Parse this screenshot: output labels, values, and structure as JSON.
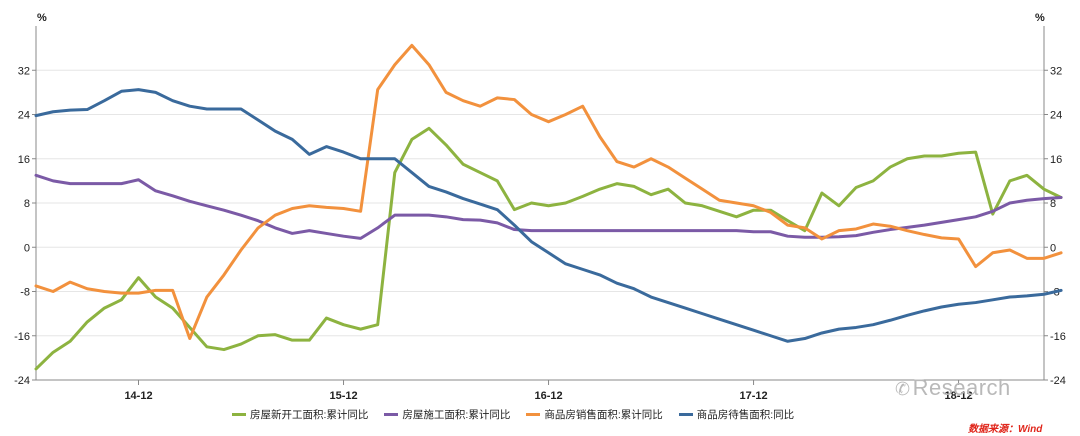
{
  "chart_data": {
    "type": "line",
    "y_unit": "%",
    "ylim": [
      -24,
      40
    ],
    "yticks": [
      -24,
      -16,
      -8,
      0,
      8,
      16,
      24,
      32
    ],
    "x_range": [
      0,
      59
    ],
    "x_tick_labels": [
      {
        "label": "14-12",
        "x": 6
      },
      {
        "label": "15-12",
        "x": 18
      },
      {
        "label": "16-12",
        "x": 30
      },
      {
        "label": "17-12",
        "x": 42
      },
      {
        "label": "18-12",
        "x": 54
      }
    ],
    "grid": true,
    "legend_position": "bottom",
    "series": [
      {
        "name": "房屋新开工面积:累计同比",
        "color": "#8db340",
        "values": [
          -22,
          -19,
          -17,
          -13.5,
          -11,
          -9.5,
          -5.5,
          -9,
          -11,
          -14.5,
          -18,
          -18.5,
          -17.5,
          -16,
          -15.8,
          -16.8,
          -16.8,
          -12.8,
          -14,
          -14.8,
          -14,
          13.5,
          19.5,
          21.5,
          18.5,
          15,
          13.5,
          12,
          6.8,
          8,
          7.5,
          8,
          9.2,
          10.5,
          11.5,
          11,
          9.5,
          10.5,
          8,
          7.5,
          6.5,
          5.5,
          6.7,
          6.7,
          4.8,
          3,
          9.8,
          7.5,
          10.8,
          12,
          14.5,
          16,
          16.5,
          16.5,
          17,
          17.2,
          6,
          12,
          13,
          10.5,
          9
        ]
      },
      {
        "name": "房屋施工面积:累计同比",
        "color": "#7b5aa6",
        "values": [
          13,
          12,
          11.5,
          11.5,
          11.5,
          11.5,
          12.2,
          10.2,
          9.3,
          8.3,
          7.5,
          6.7,
          5.8,
          4.8,
          3.5,
          2.5,
          3,
          2.5,
          2,
          1.6,
          3.5,
          5.8,
          5.8,
          5.8,
          5.5,
          5,
          4.9,
          4.4,
          3.2,
          3,
          3,
          3,
          3,
          3,
          3,
          3,
          3,
          3,
          3,
          3,
          3,
          3,
          2.8,
          2.8,
          2,
          1.8,
          1.8,
          1.9,
          2.1,
          2.7,
          3.2,
          3.6,
          4,
          4.5,
          5,
          5.5,
          6.5,
          8,
          8.5,
          8.8,
          9
        ]
      },
      {
        "name": "商品房销售面积:累计同比",
        "color": "#f2913d",
        "values": [
          -7,
          -8,
          -6.3,
          -7.5,
          -8,
          -8.3,
          -8.3,
          -7.8,
          -7.8,
          -16.5,
          -9,
          -5,
          -0.5,
          3.5,
          5.8,
          7,
          7.5,
          7.2,
          7,
          6.5,
          28.5,
          33,
          36.5,
          33,
          28,
          26.5,
          25.5,
          27,
          26.7,
          24,
          22.7,
          24,
          25.5,
          20,
          15.5,
          14.5,
          16,
          14.5,
          12.5,
          10.5,
          8.5,
          8,
          7.5,
          6.3,
          4,
          3.5,
          1.5,
          3,
          3.3,
          4.2,
          3.8,
          3,
          2.3,
          1.7,
          1.5,
          -3.5,
          -1,
          -0.5,
          -2,
          -2,
          -1
        ]
      },
      {
        "name": "商品房待售面积:同比",
        "color": "#3a6a9c",
        "values": [
          23.8,
          24.5,
          24.8,
          24.9,
          26.5,
          28.2,
          28.5,
          28,
          26.5,
          25.5,
          25,
          25,
          25,
          23,
          21,
          19.5,
          16.8,
          18.2,
          17.2,
          16,
          16,
          16,
          13.5,
          11,
          10,
          8.8,
          7.8,
          6.8,
          4,
          1,
          -1,
          -3,
          -4,
          -5,
          -6.5,
          -7.5,
          -9,
          -10,
          -11,
          -12,
          -13,
          -14,
          -15,
          -16,
          -17,
          -16.5,
          -15.5,
          -14.8,
          -14.5,
          -14,
          -13.2,
          -12.3,
          -11.5,
          -10.8,
          -10.3,
          -10,
          -9.5,
          -9,
          -8.8,
          -8.5,
          -7.8
        ]
      }
    ]
  },
  "watermark": {
    "icon": "wechat-icon",
    "text": "Research"
  },
  "source_text": "数据来源：Wind"
}
